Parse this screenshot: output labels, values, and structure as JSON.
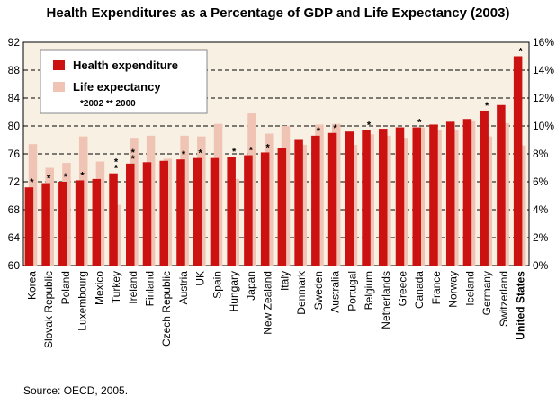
{
  "chart_data": {
    "type": "bar",
    "title": "Health Expenditures as a Percentage of GDP and Life Expectancy (2003)",
    "source": "Source: OECD, 2005.",
    "categories": [
      "Korea",
      "Slovak Republic",
      "Poland",
      "Luxembourg",
      "Mexico",
      "Turkey",
      "Ireland",
      "Finland",
      "Czech Republic",
      "Austria",
      "UK",
      "Spain",
      "Hungary",
      "Japan",
      "New Zealand",
      "Italy",
      "Denmark",
      "Sweden",
      "Australia",
      "Portugal",
      "Belgium",
      "Netherlands",
      "Greece",
      "Canada",
      "France",
      "Norway",
      "Iceland",
      "Germany",
      "Switzerland",
      "United States"
    ],
    "highlight_category": "United States",
    "series": [
      {
        "name": "Health expenditure",
        "axis": "right",
        "color": "#cc1111",
        "values": [
          5.6,
          5.9,
          6.0,
          6.1,
          6.2,
          6.6,
          7.3,
          7.4,
          7.5,
          7.6,
          7.7,
          7.7,
          7.8,
          7.9,
          8.1,
          8.4,
          9.0,
          9.3,
          9.5,
          9.6,
          9.7,
          9.8,
          9.9,
          9.9,
          10.1,
          10.3,
          10.5,
          11.1,
          11.5,
          15.0
        ]
      },
      {
        "name": "Life expectancy",
        "axis": "left",
        "color": "#f0c4b4",
        "values": [
          77.4,
          74.0,
          74.7,
          78.5,
          74.9,
          68.7,
          78.3,
          78.6,
          75.3,
          78.6,
          78.5,
          80.3,
          72.4,
          81.8,
          78.9,
          80.0,
          77.3,
          80.2,
          80.3,
          77.3,
          78.8,
          78.6,
          78.3,
          79.8,
          79.4,
          79.5,
          80.8,
          78.5,
          80.4,
          77.2
        ]
      }
    ],
    "markers": [
      {
        "category": "Korea",
        "symbol": "*"
      },
      {
        "category": "Slovak Republic",
        "symbol": "*"
      },
      {
        "category": "Poland",
        "symbol": "*"
      },
      {
        "category": "Luxembourg",
        "symbol": "*"
      },
      {
        "category": "Turkey",
        "symbol": "*"
      },
      {
        "category": "Turkey",
        "symbol": "*"
      },
      {
        "category": "Ireland",
        "symbol": "*"
      },
      {
        "category": "Ireland",
        "symbol": "*"
      },
      {
        "category": "Austria",
        "symbol": "*"
      },
      {
        "category": "UK",
        "symbol": "*"
      },
      {
        "category": "Hungary",
        "symbol": "*"
      },
      {
        "category": "Japan",
        "symbol": "*"
      },
      {
        "category": "New Zealand",
        "symbol": "*"
      },
      {
        "category": "Sweden",
        "symbol": "*"
      },
      {
        "category": "Australia",
        "symbol": "*"
      },
      {
        "category": "Belgium",
        "symbol": "*"
      },
      {
        "category": "Canada",
        "symbol": "*"
      },
      {
        "category": "Germany",
        "symbol": "*"
      },
      {
        "category": "United States",
        "symbol": "*"
      }
    ],
    "legend": {
      "placement": "top-left",
      "note": "*2002    ** 2000"
    },
    "y_left": {
      "ticks": [
        60,
        64,
        68,
        72,
        76,
        80,
        84,
        88,
        92
      ],
      "ylim": [
        60,
        92
      ]
    },
    "y_right": {
      "ticks": [
        "0%",
        "2%",
        "4%",
        "6%",
        "8%",
        "10%",
        "12%",
        "14%",
        "16%"
      ],
      "ylim": [
        0,
        16
      ]
    },
    "grid": "horizontal dashed",
    "plot_background": "#f8f1e3"
  }
}
